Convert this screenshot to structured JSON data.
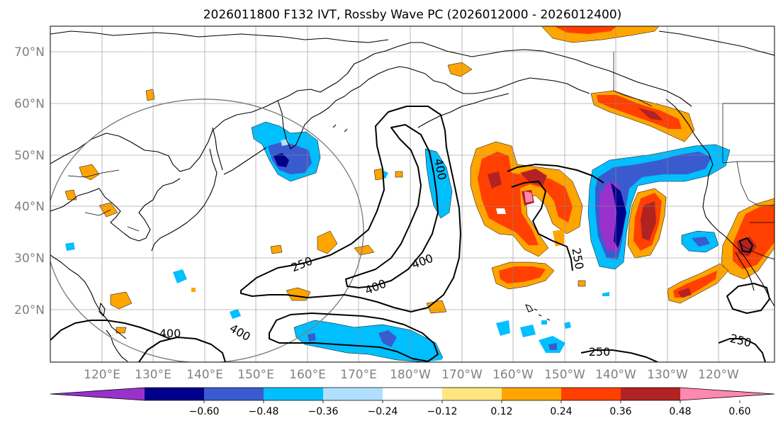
{
  "title": "2026011800 F132 IVT, Rossby Wave PC (2026012000 - 2026012400)",
  "lat_labels": [
    "70°N",
    "60°N",
    "50°N",
    "40°N",
    "30°N",
    "20°N"
  ],
  "lon_labels": [
    "120°E",
    "130°E",
    "140°E",
    "150°E",
    "160°E",
    "170°E",
    "180°W",
    "170°W",
    "160°W",
    "150°W",
    "140°W",
    "130°W",
    "120°W"
  ],
  "colorbar": {
    "colors": [
      "#9932cc",
      "#00008b",
      "#3a5bcf",
      "#00bfff",
      "#b0e0ff",
      "#ffffff",
      "#ffe680",
      "#ffa500",
      "#ff4000",
      "#b22222",
      "#ff88b0"
    ],
    "tick_labels": [
      "−0.60",
      "−0.48",
      "−0.36",
      "−0.24",
      "−0.12",
      "0.12",
      "0.24",
      "0.36",
      "0.48",
      "0.60"
    ]
  },
  "contour_labels": [
    "400",
    "400",
    "400",
    "400",
    "250",
    "400",
    "250",
    "250",
    "250"
  ],
  "map": {
    "lat_range": [
      10,
      75
    ],
    "lon_range_east": [
      111,
      252
    ],
    "features": [
      "coastlines",
      "country-borders",
      "gridlines",
      "ivt-contours",
      "rossby-wave-pc-shading",
      "reference-circle"
    ]
  }
}
